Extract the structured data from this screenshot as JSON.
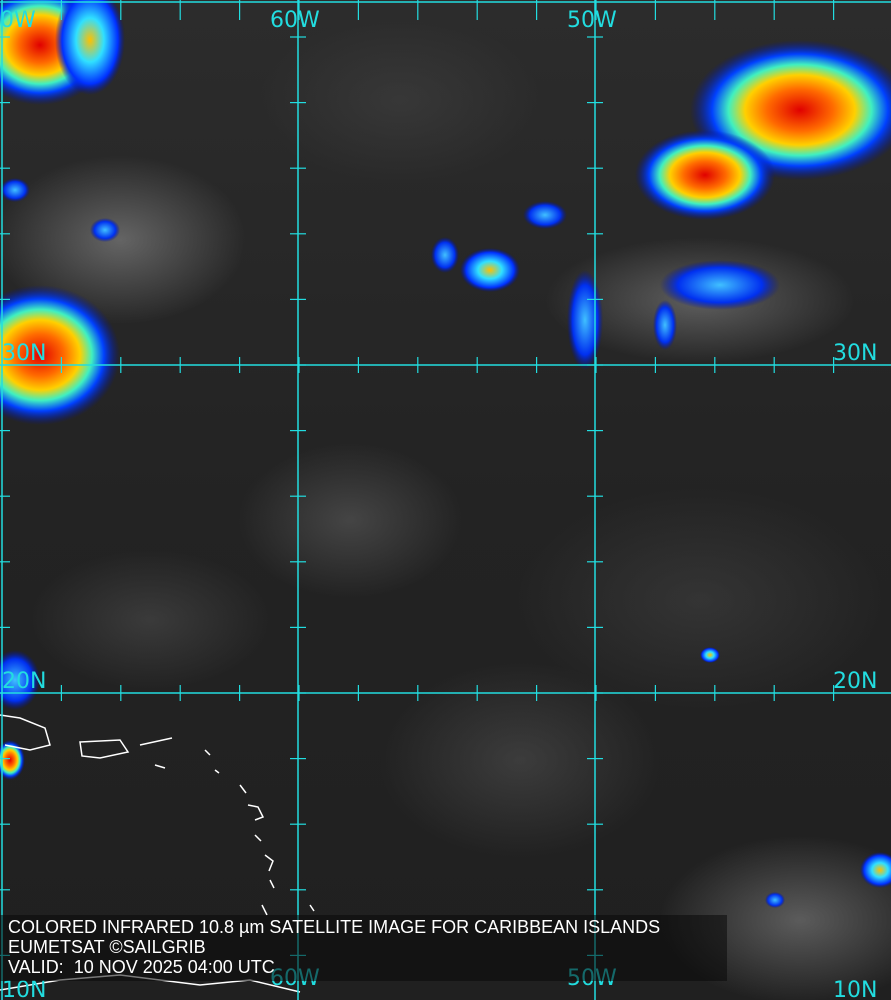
{
  "map": {
    "grid_color": "#22dde0",
    "longitude_labels_top": [
      "0W",
      "60W",
      "50W"
    ],
    "longitude_labels_bottom": [
      "60W",
      "50W"
    ],
    "latitude_labels_left": [
      "30N",
      "20N",
      "10N"
    ],
    "latitude_labels_right": [
      "30N",
      "20N",
      "10N"
    ]
  },
  "caption": {
    "line1": "COLORED INFRARED 10.8 µm SATELLITE IMAGE FOR CARIBBEAN ISLANDS",
    "line2": "EUMETSAT ©SAILGRIB",
    "line3": "VALID:  10 NOV 2025 04:00 UTC"
  }
}
